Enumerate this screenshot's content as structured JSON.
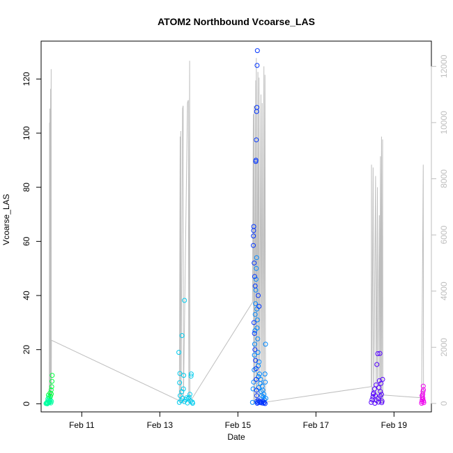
{
  "chart_data": {
    "type": "scatter",
    "title": "ATOM2 Northbound Vcoarse_LAS",
    "xlabel": "Date",
    "ylabel": "Vcoarse_LAS",
    "xlim": [
      "2010-02-09 23:00",
      "2010-02-19 23:00"
    ],
    "xticks": [
      {
        "date": "2010-02-11",
        "label": "Feb 11"
      },
      {
        "date": "2010-02-13",
        "label": "Feb 13"
      },
      {
        "date": "2010-02-15",
        "label": "Feb 15"
      },
      {
        "date": "2010-02-17",
        "label": "Feb 17"
      },
      {
        "date": "2010-02-19",
        "label": "Feb 19"
      }
    ],
    "ylim": [
      -3,
      134
    ],
    "yticks": [
      0,
      20,
      40,
      60,
      80,
      100,
      120
    ],
    "y2lim": [
      -300,
      12900
    ],
    "y2ticks": [
      0,
      2000,
      4000,
      6000,
      8000,
      10000,
      12000
    ],
    "y2_color": "#bebebe",
    "line_color": "#bebebe",
    "grid": false,
    "legend": "none",
    "secondary_series": {
      "axis": "right",
      "points": [
        [
          "2010-02-10 04:00",
          0
        ],
        [
          "2010-02-10 04:10",
          10000
        ],
        [
          "2010-02-10 04:15",
          0
        ],
        [
          "2010-02-10 04:25",
          10500
        ],
        [
          "2010-02-10 04:30",
          0
        ],
        [
          "2010-02-10 04:50",
          11200
        ],
        [
          "2010-02-10 04:55",
          0
        ],
        [
          "2010-02-10 05:10",
          11900
        ],
        [
          "2010-02-10 05:15",
          0
        ],
        [
          "2010-02-10 05:20",
          2250
        ],
        [
          "2010-02-13 12:00",
          100
        ],
        [
          "2010-02-13 12:30",
          9500
        ],
        [
          "2010-02-13 12:40",
          0
        ],
        [
          "2010-02-13 12:50",
          9700
        ],
        [
          "2010-02-13 13:00",
          0
        ],
        [
          "2010-02-13 14:00",
          10500
        ],
        [
          "2010-02-13 14:20",
          10600
        ],
        [
          "2010-02-13 14:30",
          0
        ],
        [
          "2010-02-13 17:00",
          10700
        ],
        [
          "2010-02-13 17:30",
          10800
        ],
        [
          "2010-02-13 17:50",
          0
        ],
        [
          "2010-02-13 18:20",
          12200
        ],
        [
          "2010-02-13 18:30",
          0
        ],
        [
          "2010-02-13 19:00",
          100
        ],
        [
          "2010-02-15 09:00",
          3600
        ],
        [
          "2010-02-15 09:30",
          10300
        ],
        [
          "2010-02-15 09:40",
          0
        ],
        [
          "2010-02-15 10:00",
          10600
        ],
        [
          "2010-02-15 10:20",
          0
        ],
        [
          "2010-02-15 11:00",
          11500
        ],
        [
          "2010-02-15 11:10",
          0
        ],
        [
          "2010-02-15 11:20",
          12300
        ],
        [
          "2010-02-15 11:40",
          0
        ],
        [
          "2010-02-15 12:20",
          11800
        ],
        [
          "2010-02-15 12:30",
          0
        ],
        [
          "2010-02-15 13:00",
          11600
        ],
        [
          "2010-02-15 13:20",
          0
        ],
        [
          "2010-02-15 14:10",
          11000
        ],
        [
          "2010-02-15 14:20",
          0
        ],
        [
          "2010-02-15 15:00",
          10700
        ],
        [
          "2010-02-15 15:20",
          0
        ],
        [
          "2010-02-15 16:00",
          12000
        ],
        [
          "2010-02-15 16:10",
          0
        ],
        [
          "2010-02-15 16:40",
          11700
        ],
        [
          "2010-02-15 17:00",
          0
        ],
        [
          "2010-02-15 17:20",
          50
        ],
        [
          "2010-02-18 10:00",
          600
        ],
        [
          "2010-02-18 10:10",
          8500
        ],
        [
          "2010-02-18 10:20",
          0
        ],
        [
          "2010-02-18 11:10",
          8400
        ],
        [
          "2010-02-18 11:30",
          0
        ],
        [
          "2010-02-18 12:40",
          8100
        ],
        [
          "2010-02-18 13:00",
          0
        ],
        [
          "2010-02-18 13:50",
          7700
        ],
        [
          "2010-02-18 14:00",
          0
        ],
        [
          "2010-02-18 15:00",
          6700
        ],
        [
          "2010-02-18 15:10",
          0
        ],
        [
          "2010-02-18 15:40",
          8800
        ],
        [
          "2010-02-18 15:50",
          0
        ],
        [
          "2010-02-18 16:20",
          9500
        ],
        [
          "2010-02-18 16:30",
          0
        ],
        [
          "2010-02-18 17:00",
          9400
        ],
        [
          "2010-02-18 17:10",
          0
        ],
        [
          "2010-02-18 17:20",
          300
        ],
        [
          "2010-02-19 17:00",
          200
        ],
        [
          "2010-02-19 18:00",
          8500
        ],
        [
          "2010-02-19 18:10",
          0
        ],
        [
          "2010-02-19 18:20",
          50
        ]
      ]
    },
    "series": [
      {
        "color": "#00ffa0",
        "points": [
          [
            "2010-02-10 02:00",
            0.1
          ],
          [
            "2010-02-10 02:20",
            0.3
          ],
          [
            "2010-02-10 02:40",
            0.6
          ],
          [
            "2010-02-10 03:00",
            0.2
          ],
          [
            "2010-02-10 03:20",
            1.2
          ],
          [
            "2010-02-10 03:40",
            0.4
          ],
          [
            "2010-02-10 04:00",
            2.1
          ],
          [
            "2010-02-10 04:20",
            0.8
          ],
          [
            "2010-02-10 04:40",
            1.5
          ],
          [
            "2010-02-10 05:00",
            0.3
          ],
          [
            "2010-02-10 05:20",
            0.9
          ],
          [
            "2010-02-10 03:10",
            1.8
          ],
          [
            "2010-02-10 04:10",
            0.5
          ],
          [
            "2010-02-10 02:50",
            0.0
          ],
          [
            "2010-02-10 03:50",
            2.6
          ]
        ]
      },
      {
        "color": "#00ff40",
        "points": [
          [
            "2010-02-10 03:30",
            3.2
          ],
          [
            "2010-02-10 04:30",
            4.0
          ],
          [
            "2010-02-10 05:10",
            5.1
          ],
          [
            "2010-02-10 05:30",
            6.3
          ],
          [
            "2010-02-10 05:40",
            8.3
          ],
          [
            "2010-02-10 05:50",
            10.5
          ],
          [
            "2010-02-10 04:50",
            2.8
          ],
          [
            "2010-02-10 05:15",
            3.6
          ]
        ]
      },
      {
        "color": "#00ccee",
        "points": [
          [
            "2010-02-13 12:00",
            0.5
          ],
          [
            "2010-02-13 13:00",
            1.2
          ],
          [
            "2010-02-13 14:00",
            2.0
          ],
          [
            "2010-02-13 15:00",
            0.8
          ],
          [
            "2010-02-13 16:00",
            1.5
          ],
          [
            "2010-02-13 17:00",
            0.3
          ],
          [
            "2010-02-13 18:00",
            2.4
          ],
          [
            "2010-02-13 19:00",
            1.0
          ],
          [
            "2010-02-13 20:00",
            0.6
          ],
          [
            "2010-02-13 12:30",
            3.0
          ],
          [
            "2010-02-13 13:30",
            4.5
          ],
          [
            "2010-02-13 14:30",
            5.5
          ],
          [
            "2010-02-13 12:10",
            7.8
          ],
          [
            "2010-02-13 12:20",
            11.2
          ],
          [
            "2010-02-13 11:40",
            19.0
          ],
          [
            "2010-02-13 13:40",
            25.2
          ],
          [
            "2010-02-13 14:40",
            10.5
          ],
          [
            "2010-02-13 15:10",
            38.2
          ],
          [
            "2010-02-13 19:10",
            10.2
          ],
          [
            "2010-02-13 19:20",
            11.0
          ],
          [
            "2010-02-13 18:30",
            3.5
          ],
          [
            "2010-02-13 16:30",
            2.2
          ],
          [
            "2010-02-13 17:30",
            1.8
          ],
          [
            "2010-02-13 20:10",
            0.2
          ]
        ]
      },
      {
        "color": "#0088ff",
        "points": [
          [
            "2010-02-15 09:00",
            0.5
          ],
          [
            "2010-02-15 09:20",
            5.5
          ],
          [
            "2010-02-15 09:40",
            8.0
          ],
          [
            "2010-02-15 10:00",
            12.5
          ],
          [
            "2010-02-15 10:10",
            18.0
          ],
          [
            "2010-02-15 10:20",
            22.0
          ],
          [
            "2010-02-15 10:30",
            27.0
          ],
          [
            "2010-02-15 10:40",
            33.0
          ],
          [
            "2010-02-15 10:50",
            37.0
          ],
          [
            "2010-02-15 11:00",
            42.0
          ],
          [
            "2010-02-15 11:10",
            46.0
          ],
          [
            "2010-02-15 11:20",
            50.0
          ],
          [
            "2010-02-15 11:30",
            54.0
          ],
          [
            "2010-02-15 11:40",
            35.0
          ],
          [
            "2010-02-15 11:50",
            28.0
          ],
          [
            "2010-02-15 12:00",
            31.0
          ],
          [
            "2010-02-15 12:10",
            24.0
          ],
          [
            "2010-02-15 12:20",
            19.0
          ],
          [
            "2010-02-15 12:30",
            14.0
          ],
          [
            "2010-02-15 12:40",
            10.0
          ],
          [
            "2010-02-15 12:50",
            6.0
          ],
          [
            "2010-02-15 13:00",
            15.5
          ],
          [
            "2010-02-15 13:20",
            11.0
          ],
          [
            "2010-02-15 13:40",
            7.5
          ],
          [
            "2010-02-15 14:00",
            9.0
          ],
          [
            "2010-02-15 14:20",
            4.5
          ],
          [
            "2010-02-15 14:40",
            3.0
          ],
          [
            "2010-02-15 15:00",
            6.5
          ],
          [
            "2010-02-15 15:20",
            5.0
          ],
          [
            "2010-02-15 15:40",
            2.5
          ],
          [
            "2010-02-15 16:00",
            3.5
          ],
          [
            "2010-02-15 16:20",
            1.5
          ],
          [
            "2010-02-15 16:40",
            11.0
          ],
          [
            "2010-02-15 16:50",
            8.0
          ],
          [
            "2010-02-15 17:00",
            22.0
          ],
          [
            "2010-02-15 17:10",
            2.0
          ]
        ]
      },
      {
        "color": "#0033ff",
        "points": [
          [
            "2010-02-15 09:30",
            58.5
          ],
          [
            "2010-02-15 09:35",
            62.0
          ],
          [
            "2010-02-15 09:40",
            64.0
          ],
          [
            "2010-02-15 09:45",
            65.5
          ],
          [
            "2010-02-15 10:00",
            52.0
          ],
          [
            "2010-02-15 10:20",
            47.0
          ],
          [
            "2010-02-15 10:40",
            43.5
          ],
          [
            "2010-02-15 11:00",
            89.5
          ],
          [
            "2010-02-15 11:05",
            90.0
          ],
          [
            "2010-02-15 11:20",
            97.5
          ],
          [
            "2010-02-15 11:30",
            108.0
          ],
          [
            "2010-02-15 11:40",
            109.5
          ],
          [
            "2010-02-15 11:50",
            125.0
          ],
          [
            "2010-02-15 12:00",
            130.5
          ],
          [
            "2010-02-15 12:30",
            40.0
          ],
          [
            "2010-02-15 13:00",
            36.0
          ],
          [
            "2010-02-15 09:50",
            30.0
          ],
          [
            "2010-02-15 10:10",
            26.0
          ],
          [
            "2010-02-15 10:30",
            20.0
          ],
          [
            "2010-02-15 10:50",
            16.0
          ],
          [
            "2010-02-15 11:10",
            13.0
          ],
          [
            "2010-02-15 11:15",
            9.0
          ],
          [
            "2010-02-15 11:25",
            5.0
          ],
          [
            "2010-02-15 11:35",
            3.0
          ],
          [
            "2010-02-15 11:45",
            1.0
          ],
          [
            "2010-02-15 11:55",
            0.2
          ],
          [
            "2010-02-15 12:15",
            0.5
          ],
          [
            "2010-02-15 12:45",
            1.2
          ],
          [
            "2010-02-15 13:15",
            0.8
          ],
          [
            "2010-02-15 13:45",
            0.4
          ],
          [
            "2010-02-15 14:15",
            0.6
          ],
          [
            "2010-02-15 14:45",
            0.3
          ],
          [
            "2010-02-15 15:15",
            0.9
          ],
          [
            "2010-02-15 15:45",
            0.2
          ],
          [
            "2010-02-15 16:15",
            0.5
          ],
          [
            "2010-02-15 16:45",
            0.1
          ]
        ]
      },
      {
        "color": "#5500ff",
        "points": [
          [
            "2010-02-18 10:00",
            0.5
          ],
          [
            "2010-02-18 10:30",
            1.5
          ],
          [
            "2010-02-18 11:00",
            2.5
          ],
          [
            "2010-02-18 11:30",
            4.0
          ],
          [
            "2010-02-18 12:00",
            5.5
          ],
          [
            "2010-02-18 12:30",
            3.0
          ],
          [
            "2010-02-18 13:00",
            7.0
          ],
          [
            "2010-02-18 13:30",
            14.5
          ],
          [
            "2010-02-18 14:00",
            18.5
          ],
          [
            "2010-02-18 14:20",
            2.0
          ],
          [
            "2010-02-18 14:40",
            6.0
          ],
          [
            "2010-02-18 15:00",
            8.5
          ],
          [
            "2010-02-18 15:20",
            18.6
          ],
          [
            "2010-02-18 15:40",
            4.5
          ],
          [
            "2010-02-18 16:00",
            7.5
          ],
          [
            "2010-02-18 16:20",
            3.5
          ],
          [
            "2010-02-18 16:40",
            1.0
          ],
          [
            "2010-02-18 17:00",
            9.0
          ],
          [
            "2010-02-18 12:15",
            0.2
          ],
          [
            "2010-02-18 13:15",
            1.2
          ],
          [
            "2010-02-18 14:30",
            0.6
          ],
          [
            "2010-02-18 15:30",
            2.8
          ],
          [
            "2010-02-18 16:30",
            0.4
          ],
          [
            "2010-02-18 11:15",
            3.6
          ]
        ]
      },
      {
        "color": "#ee00ee",
        "points": [
          [
            "2010-02-19 17:00",
            0.2
          ],
          [
            "2010-02-19 17:10",
            0.8
          ],
          [
            "2010-02-19 17:20",
            1.5
          ],
          [
            "2010-02-19 17:30",
            2.5
          ],
          [
            "2010-02-19 17:40",
            3.5
          ],
          [
            "2010-02-19 17:50",
            4.5
          ],
          [
            "2010-02-19 18:00",
            6.5
          ],
          [
            "2010-02-19 18:10",
            1.0
          ],
          [
            "2010-02-19 18:20",
            0.4
          ],
          [
            "2010-02-19 17:15",
            3.0
          ],
          [
            "2010-02-19 17:45",
            2.0
          ],
          [
            "2010-02-19 18:05",
            5.2
          ]
        ]
      }
    ]
  }
}
